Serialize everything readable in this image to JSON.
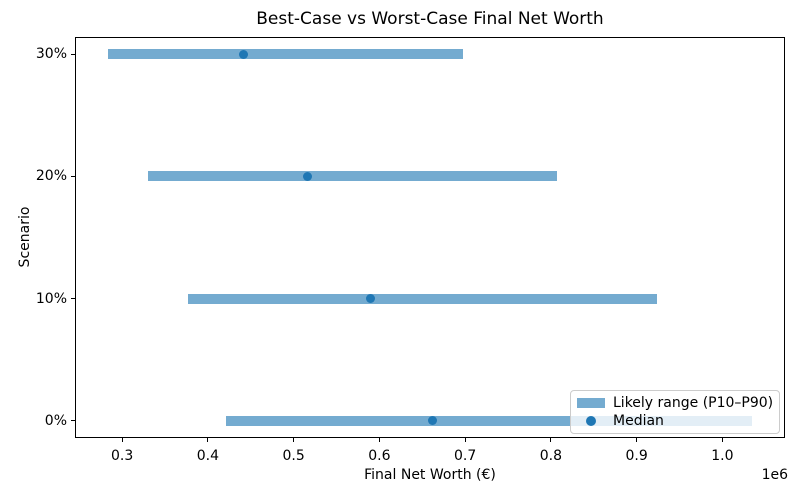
{
  "title": "Best-Case vs Worst-Case Final Net Worth",
  "legend": {
    "range_label": "Likely range (P10–P90)",
    "median_label": "Median",
    "position": "lower right"
  },
  "colors": {
    "bar": "#74abd0",
    "median_dot": "#1f77b4",
    "spine": "#000000",
    "legend_border": "#cccccc"
  },
  "chart_data": {
    "type": "bar",
    "orientation": "horizontal",
    "title": "Best-Case vs Worst-Case Final Net Worth",
    "xlabel": "Final Net Worth (€)",
    "ylabel": "Scenario",
    "x_offset_label": "1e6",
    "categories": [
      "0%",
      "10%",
      "20%",
      "30%"
    ],
    "categories_order": "bottom-to-top",
    "series": [
      {
        "name": "P10",
        "values": [
          421000,
          377000,
          330000,
          284000
        ]
      },
      {
        "name": "Median",
        "values": [
          662000,
          590000,
          516000,
          441000
        ]
      },
      {
        "name": "P90",
        "values": [
          1035000,
          924000,
          807000,
          697000
        ]
      }
    ],
    "xlim": [
      245000,
      1073000
    ],
    "x_ticks": [
      300000,
      400000,
      500000,
      600000,
      700000,
      800000,
      900000,
      1000000
    ],
    "x_tick_labels": [
      "0.3",
      "0.4",
      "0.5",
      "0.6",
      "0.7",
      "0.8",
      "0.9",
      "1.0"
    ],
    "grid": false,
    "legend_position": "lower right"
  }
}
